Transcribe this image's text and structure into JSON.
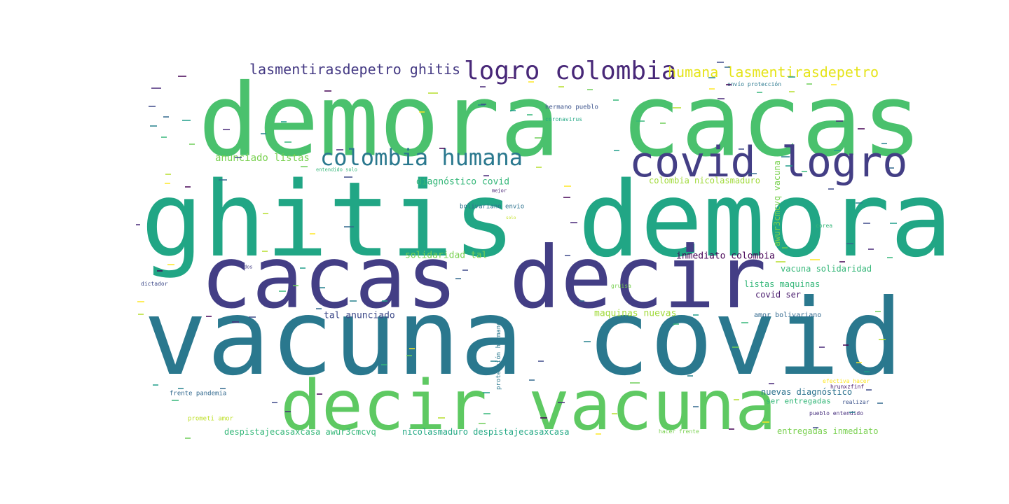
{
  "words": [
    {
      "text": "demora cacas",
      "color": "#4ac16d"
    },
    {
      "text": "ghitis demora",
      "color": "#21a685"
    },
    {
      "text": "cacas decir",
      "color": "#433e85"
    },
    {
      "text": "vacuna covid",
      "color": "#2a788e"
    },
    {
      "text": "decir vacuna",
      "color": "#5ec962"
    },
    {
      "text": "covid logro",
      "color": "#433e85"
    },
    {
      "text": "logro colombia",
      "color": "#482878"
    },
    {
      "text": "colombia humana",
      "color": "#2a788e"
    },
    {
      "text": "lasmentirasdepetro ghitis",
      "color": "#443983"
    },
    {
      "text": "humana lasmentirasdepetro",
      "color": "#e5e419"
    },
    {
      "text": "anunciado listas",
      "color": "#7ad151"
    },
    {
      "text": "diagnóstico covid",
      "color": "#35b779"
    },
    {
      "text": "colombia nicolasmaduro",
      "color": "#a0da39"
    },
    {
      "text": "awur3cmcvq vacuna",
      "color": "#7ad151"
    },
    {
      "text": "inmediato colombia",
      "color": "#440154"
    },
    {
      "text": "solidaridad tal",
      "color": "#7ad151"
    },
    {
      "text": "vacuna solidaridad",
      "color": "#35b779"
    },
    {
      "text": "listas maquinas",
      "color": "#35b779"
    },
    {
      "text": "covid ser",
      "color": "#481a6c"
    },
    {
      "text": "maquinas nuevas",
      "color": "#a0da39"
    },
    {
      "text": "tal anunciado",
      "color": "#3e4a89"
    },
    {
      "text": "amor bolivariano",
      "color": "#31688e"
    },
    {
      "text": "nuevas diagnóstico",
      "color": "#2c728e"
    },
    {
      "text": "ser entregadas",
      "color": "#35b779"
    },
    {
      "text": "entregadas inmediato",
      "color": "#7ad151"
    },
    {
      "text": "despistajecasaxcasa awur3cmcvq",
      "color": "#35b779"
    },
    {
      "text": "nicolasmaduro despistajecasaxcasa",
      "color": "#22a884"
    },
    {
      "text": "frente pandemia",
      "color": "#31688e"
    },
    {
      "text": "prometi amor",
      "color": "#bddf26"
    },
    {
      "text": "hermano pueblo",
      "color": "#3b528b"
    },
    {
      "text": "bolivariano envio",
      "color": "#2c728e"
    },
    {
      "text": "coronavirus",
      "color": "#22a884"
    },
    {
      "text": "envío protección",
      "color": "#2a788e"
    },
    {
      "text": "protección hermano",
      "color": "#2a788e"
    },
    {
      "text": "pueblo entendido",
      "color": "#472f7d"
    },
    {
      "text": "hacer frente",
      "color": "#7ad151"
    },
    {
      "text": "realizar",
      "color": "#3b528b"
    },
    {
      "text": "efectiva hacer",
      "color": "#fde725"
    },
    {
      "text": "dictador",
      "color": "#3e4a89"
    },
    {
      "text": "entendido solo",
      "color": "#35b779"
    },
    {
      "text": "mejor",
      "color": "#482475"
    },
    {
      "text": "corea",
      "color": "#35b779"
    },
    {
      "text": "gruisa",
      "color": "#7ad151"
    },
    {
      "text": "hrunxzfinf",
      "color": "#481a6c"
    },
    {
      "text": "dos",
      "color": "#433e85"
    },
    {
      "text": "solo",
      "color": "#c2df23"
    }
  ]
}
